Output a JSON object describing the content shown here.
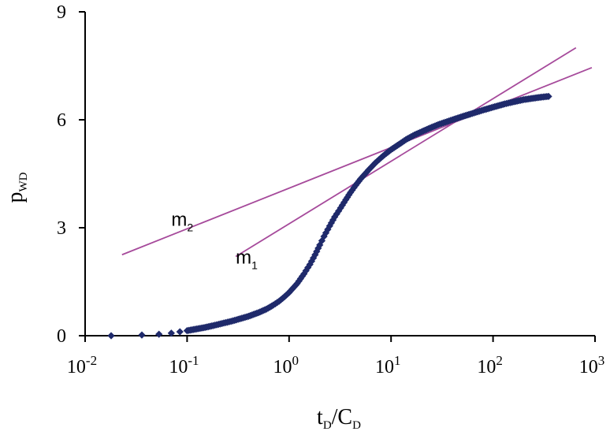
{
  "chart_data": {
    "type": "scatter",
    "x_scale": "log",
    "x_axis": {
      "range": [
        0.01,
        1000
      ],
      "ticks": [
        {
          "value": 0.01,
          "base": "10",
          "exp": "-2"
        },
        {
          "value": 0.1,
          "base": "10",
          "exp": "-1"
        },
        {
          "value": 1,
          "base": "10",
          "exp": "0"
        },
        {
          "value": 10,
          "base": "10",
          "exp": "1"
        },
        {
          "value": 100,
          "base": "10",
          "exp": "2"
        },
        {
          "value": 1000,
          "base": "10",
          "exp": "3"
        }
      ],
      "title": {
        "parts": [
          "t",
          "D",
          "/C",
          "D"
        ]
      }
    },
    "y_axis": {
      "range": [
        0,
        9
      ],
      "ticks": [
        {
          "value": 0,
          "label": "0"
        },
        {
          "value": 3,
          "label": "3"
        },
        {
          "value": 6,
          "label": "6"
        },
        {
          "value": 9,
          "label": "9"
        }
      ],
      "title": {
        "parts": [
          "p",
          "WD"
        ]
      }
    },
    "grid": false,
    "series": [
      {
        "color": "#1f2a6b",
        "marker": "diamond",
        "points": [
          [
            0.018,
            0.0
          ],
          [
            0.036,
            0.02
          ],
          [
            0.053,
            0.04
          ],
          [
            0.07,
            0.07
          ],
          [
            0.085,
            0.11
          ],
          [
            0.1,
            0.14
          ],
          [
            0.12,
            0.18
          ],
          [
            0.15,
            0.23
          ],
          [
            0.18,
            0.28
          ],
          [
            0.22,
            0.34
          ],
          [
            0.27,
            0.4
          ],
          [
            0.33,
            0.47
          ],
          [
            0.4,
            0.54
          ],
          [
            0.5,
            0.64
          ],
          [
            0.6,
            0.74
          ],
          [
            0.7,
            0.85
          ],
          [
            0.8,
            0.96
          ],
          [
            0.9,
            1.08
          ],
          [
            1.0,
            1.2
          ],
          [
            1.2,
            1.45
          ],
          [
            1.4,
            1.72
          ],
          [
            1.6,
            1.98
          ],
          [
            1.8,
            2.25
          ],
          [
            2.0,
            2.52
          ],
          [
            2.2,
            2.76
          ],
          [
            2.5,
            3.05
          ],
          [
            2.8,
            3.3
          ],
          [
            3.2,
            3.55
          ],
          [
            3.6,
            3.78
          ],
          [
            4.0,
            3.98
          ],
          [
            4.5,
            4.18
          ],
          [
            5.0,
            4.35
          ],
          [
            6.0,
            4.6
          ],
          [
            7.0,
            4.8
          ],
          [
            8.0,
            4.95
          ],
          [
            9.0,
            5.07
          ],
          [
            10,
            5.17
          ],
          [
            12,
            5.32
          ],
          [
            14,
            5.45
          ],
          [
            17,
            5.58
          ],
          [
            20,
            5.67
          ],
          [
            25,
            5.79
          ],
          [
            30,
            5.88
          ],
          [
            40,
            6.0
          ],
          [
            50,
            6.09
          ],
          [
            60,
            6.16
          ],
          [
            80,
            6.27
          ],
          [
            100,
            6.35
          ],
          [
            130,
            6.44
          ],
          [
            160,
            6.5
          ],
          [
            200,
            6.56
          ],
          [
            250,
            6.6
          ],
          [
            300,
            6.63
          ],
          [
            350,
            6.65
          ]
        ]
      }
    ],
    "lines": [
      {
        "label": "m1",
        "color": "#a64a9b",
        "from": [
          0.3,
          2.2
        ],
        "to": [
          650,
          8.0
        ]
      },
      {
        "label": "m2",
        "color": "#a64a9b",
        "from": [
          0.023,
          2.25
        ],
        "to": [
          930,
          7.45
        ]
      }
    ],
    "annotations": [
      {
        "base": "m",
        "sub": "2",
        "x": 0.07,
        "y": 3.05
      },
      {
        "base": "m",
        "sub": "1",
        "x": 0.3,
        "y": 2.0
      }
    ]
  }
}
